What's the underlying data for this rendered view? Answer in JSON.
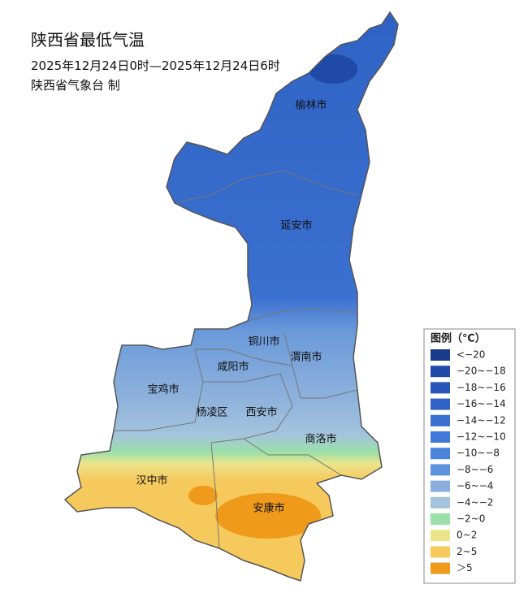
{
  "header": {
    "title": "陕西省最低气温",
    "subtitle": "2025年12月24日0时—2025年12月24日6时",
    "issuer": "陕西省气象台 制"
  },
  "cities": [
    "榆林市",
    "延安市",
    "铜川市",
    "渭南市",
    "咸阳市",
    "宝鸡市",
    "杨凌区",
    "西安市",
    "商洛市",
    "汉中市",
    "安康市"
  ],
  "legend": {
    "title": "图例（℃）",
    "items": [
      {
        "label": "<−20",
        "color": "#1a3a8c"
      },
      {
        "label": "−20~−18",
        "color": "#1f4aa8"
      },
      {
        "label": "−18~−16",
        "color": "#2656b8"
      },
      {
        "label": "−16~−14",
        "color": "#2f62c4"
      },
      {
        "label": "−14~−12",
        "color": "#3a70d0"
      },
      {
        "label": "−12~−10",
        "color": "#4079d6"
      },
      {
        "label": "−10~−8",
        "color": "#4a83da"
      },
      {
        "label": "−8~−6",
        "color": "#5e92dc"
      },
      {
        "label": "−6~−4",
        "color": "#8aaede"
      },
      {
        "label": "−4~−2",
        "color": "#a4c4dc"
      },
      {
        "label": "−2~0",
        "color": "#9be0a8"
      },
      {
        "label": "0~2",
        "color": "#ece48a"
      },
      {
        "label": "2~5",
        "color": "#f6c95c"
      },
      {
        "label": "＞5",
        "color": "#f09a1c"
      }
    ]
  }
}
